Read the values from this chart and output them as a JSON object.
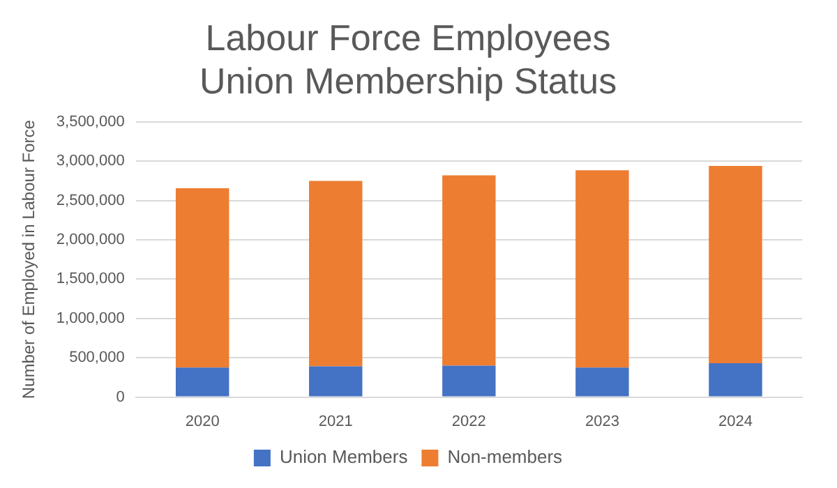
{
  "chart_data": {
    "type": "bar",
    "stacked": true,
    "title": "Labour Force Employees\nUnion Membership Status",
    "ylabel": "Number of Employed in Labour Force",
    "categories": [
      "2020",
      "2021",
      "2022",
      "2023",
      "2024"
    ],
    "series": [
      {
        "name": "Union Members",
        "color": "#4472c4",
        "values": [
          375000,
          390000,
          400000,
          375000,
          430000
        ]
      },
      {
        "name": "Non-members",
        "color": "#ed7d31",
        "values": [
          2280000,
          2360000,
          2420000,
          2510000,
          2510000
        ]
      }
    ],
    "ylim": [
      0,
      3500000
    ],
    "yticks": [
      {
        "value": 0,
        "label": "0"
      },
      {
        "value": 500000,
        "label": "500,000"
      },
      {
        "value": 1000000,
        "label": "1,000,000"
      },
      {
        "value": 1500000,
        "label": "1,500,000"
      },
      {
        "value": 2000000,
        "label": "2,000,000"
      },
      {
        "value": 2500000,
        "label": "2,500,000"
      },
      {
        "value": 3000000,
        "label": "3,000,000"
      },
      {
        "value": 3500000,
        "label": "3,500,000"
      }
    ],
    "grid": "y",
    "legend": "bottom"
  }
}
